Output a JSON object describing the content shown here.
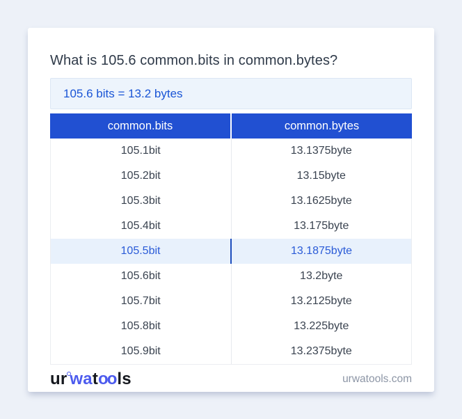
{
  "title": "What is 105.6 common.bits in common.bytes?",
  "answer": "105.6 bits = 13.2 bytes",
  "table": {
    "headers": [
      "common.bits",
      "common.bytes"
    ],
    "rows": [
      [
        "105.1bit",
        "13.1375byte"
      ],
      [
        "105.2bit",
        "13.15byte"
      ],
      [
        "105.3bit",
        "13.1625byte"
      ],
      [
        "105.4bit",
        "13.175byte"
      ],
      [
        "105.5bit",
        "13.1875byte"
      ],
      [
        "105.6bit",
        "13.2byte"
      ],
      [
        "105.7bit",
        "13.2125byte"
      ],
      [
        "105.8bit",
        "13.225byte"
      ],
      [
        "105.9bit",
        "13.2375byte"
      ]
    ],
    "highlighted_row_index": 4
  },
  "footer": {
    "logo_segments": [
      {
        "text": "ur"
      },
      {
        "text": "wa"
      },
      {
        "text": "t"
      },
      {
        "text": "oo"
      },
      {
        "text": "ls"
      }
    ],
    "site_label": "urwatools.com"
  },
  "colors": {
    "page_bg": "#edf1f8",
    "card_bg": "#ffffff",
    "table_header_bg": "#2150d2",
    "table_header_text": "#ffffff",
    "answer_box_bg": "#edf4fc",
    "answer_box_border": "#dbe6f4",
    "answer_text": "#1a55d6",
    "highlight_row_bg": "#e8f1fc",
    "highlight_row_text": "#2a5bd7",
    "highlight_divider": "#1d4dbd",
    "body_text": "#3a4350",
    "logo_accent": "#4c5bee",
    "site_label_text": "#8d96a6"
  }
}
